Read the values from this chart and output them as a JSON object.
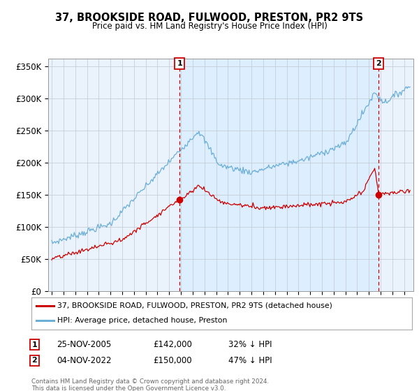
{
  "title": "37, BROOKSIDE ROAD, FULWOOD, PRESTON, PR2 9TS",
  "subtitle": "Price paid vs. HM Land Registry's House Price Index (HPI)",
  "ylabel_ticks": [
    "£0",
    "£50K",
    "£100K",
    "£150K",
    "£200K",
    "£250K",
    "£300K",
    "£350K"
  ],
  "ytick_values": [
    0,
    50000,
    100000,
    150000,
    200000,
    250000,
    300000,
    350000
  ],
  "ylim": [
    0,
    362000
  ],
  "xlim_start": 1994.7,
  "xlim_end": 2025.8,
  "hpi_color": "#6baed6",
  "price_color": "#cc0000",
  "dashed_color": "#cc0000",
  "fill_color": "#ddeeff",
  "plot_bg_color": "#eaf3fb",
  "point1": {
    "date_year": 2005.9,
    "price": 142000,
    "label": "1",
    "date_str": "25-NOV-2005",
    "pct": "32% ↓ HPI"
  },
  "point2": {
    "date_year": 2022.84,
    "price": 150000,
    "label": "2",
    "date_str": "04-NOV-2022",
    "pct": "47% ↓ HPI"
  },
  "legend_label_red": "37, BROOKSIDE ROAD, FULWOOD, PRESTON, PR2 9TS (detached house)",
  "legend_label_blue": "HPI: Average price, detached house, Preston",
  "footer": "Contains HM Land Registry data © Crown copyright and database right 2024.\nThis data is licensed under the Open Government Licence v3.0.",
  "background_color": "#ffffff",
  "grid_color": "#c0c8d0"
}
